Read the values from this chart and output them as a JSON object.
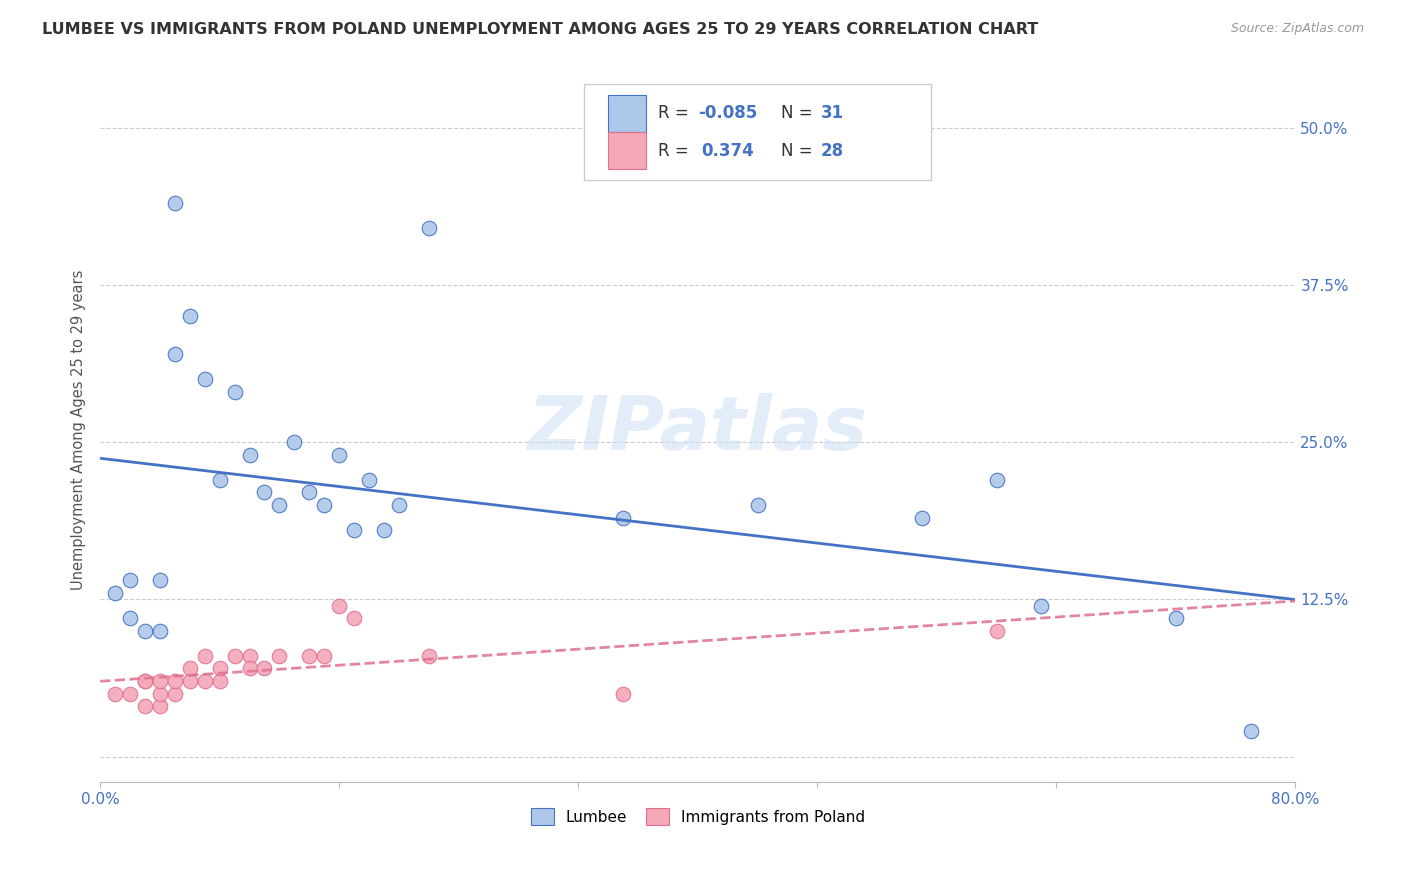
{
  "title": "LUMBEE VS IMMIGRANTS FROM POLAND UNEMPLOYMENT AMONG AGES 25 TO 29 YEARS CORRELATION CHART",
  "source": "Source: ZipAtlas.com",
  "ylabel": "Unemployment Among Ages 25 to 29 years",
  "xlim": [
    0.0,
    0.8
  ],
  "ylim": [
    -0.02,
    0.54
  ],
  "yticks": [
    0.0,
    0.125,
    0.25,
    0.375,
    0.5
  ],
  "ytick_labels": [
    "",
    "12.5%",
    "25.0%",
    "37.5%",
    "50.0%"
  ],
  "xticks": [
    0.0,
    0.16,
    0.32,
    0.48,
    0.64,
    0.8
  ],
  "xtick_labels": [
    "0.0%",
    "",
    "",
    "",
    "",
    "80.0%"
  ],
  "lumbee_R": "-0.085",
  "lumbee_N": "31",
  "poland_R": "0.374",
  "poland_N": "28",
  "lumbee_color": "#adc8e8",
  "poland_color": "#f4a8b8",
  "lumbee_line_color": "#4472c4",
  "poland_line_color": "#e07090",
  "lumbee_x": [
    0.01,
    0.02,
    0.02,
    0.03,
    0.04,
    0.04,
    0.05,
    0.05,
    0.06,
    0.07,
    0.08,
    0.09,
    0.1,
    0.11,
    0.12,
    0.13,
    0.14,
    0.15,
    0.16,
    0.17,
    0.18,
    0.19,
    0.2,
    0.22,
    0.35,
    0.44,
    0.55,
    0.6,
    0.63,
    0.72,
    0.77
  ],
  "lumbee_y": [
    0.13,
    0.11,
    0.14,
    0.1,
    0.1,
    0.14,
    0.44,
    0.32,
    0.35,
    0.3,
    0.22,
    0.29,
    0.24,
    0.21,
    0.2,
    0.25,
    0.21,
    0.2,
    0.24,
    0.18,
    0.22,
    0.18,
    0.2,
    0.42,
    0.19,
    0.2,
    0.19,
    0.22,
    0.12,
    0.11,
    0.02
  ],
  "poland_x": [
    0.01,
    0.02,
    0.03,
    0.03,
    0.03,
    0.04,
    0.04,
    0.04,
    0.05,
    0.05,
    0.06,
    0.06,
    0.07,
    0.07,
    0.08,
    0.08,
    0.09,
    0.1,
    0.1,
    0.11,
    0.12,
    0.14,
    0.15,
    0.16,
    0.17,
    0.22,
    0.35,
    0.6
  ],
  "poland_y": [
    0.05,
    0.05,
    0.04,
    0.06,
    0.06,
    0.04,
    0.05,
    0.06,
    0.05,
    0.06,
    0.06,
    0.07,
    0.06,
    0.08,
    0.06,
    0.07,
    0.08,
    0.08,
    0.07,
    0.07,
    0.08,
    0.08,
    0.08,
    0.12,
    0.11,
    0.08,
    0.05,
    0.1
  ]
}
